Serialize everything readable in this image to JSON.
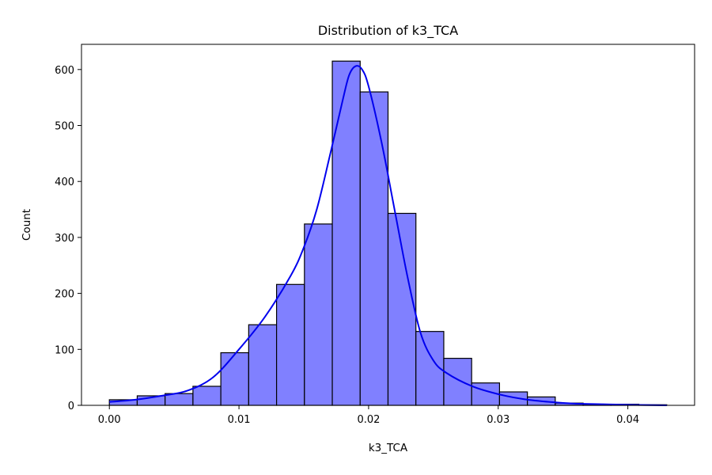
{
  "chart_data": {
    "type": "bar",
    "title": "Distribution of k3_TCA",
    "xlabel": "k3_TCA",
    "ylabel": "Count",
    "bin_edges": [
      0.0,
      0.00215,
      0.0043,
      0.00645,
      0.0086,
      0.01075,
      0.0129,
      0.01505,
      0.0172,
      0.01935,
      0.0215,
      0.02365,
      0.0258,
      0.02795,
      0.0301,
      0.03225,
      0.0344,
      0.03655,
      0.0387,
      0.04085,
      0.043
    ],
    "values": [
      10,
      17,
      21,
      34,
      94,
      144,
      216,
      324,
      615,
      560,
      343,
      132,
      84,
      40,
      24,
      15,
      4,
      2,
      2,
      1
    ],
    "kde": {
      "x": [
        0.0,
        0.002,
        0.004,
        0.006,
        0.008,
        0.01,
        0.012,
        0.014,
        0.015,
        0.016,
        0.017,
        0.018,
        0.0185,
        0.019,
        0.0195,
        0.02,
        0.021,
        0.022,
        0.023,
        0.024,
        0.025,
        0.026,
        0.028,
        0.03,
        0.032,
        0.034,
        0.036,
        0.038,
        0.04,
        0.043
      ],
      "y": [
        6,
        10,
        17,
        26,
        50,
        100,
        158,
        232,
        282,
        350,
        445,
        545,
        590,
        606,
        600,
        570,
        470,
        350,
        230,
        130,
        80,
        58,
        34,
        20,
        11,
        6,
        3,
        2,
        1,
        0
      ]
    },
    "xlim": [
      -0.00215,
      0.04515
    ],
    "ylim": [
      0,
      645
    ],
    "xticks": [
      "0.00",
      "0.01",
      "0.02",
      "0.03",
      "0.04"
    ],
    "xtick_values": [
      0.0,
      0.01,
      0.02,
      0.03,
      0.04
    ],
    "yticks": [
      "0",
      "100",
      "200",
      "300",
      "400",
      "500",
      "600"
    ],
    "ytick_values": [
      0,
      100,
      200,
      300,
      400,
      500,
      600
    ],
    "grid": false,
    "legend": "none",
    "bar_color": "#8080ff",
    "bar_edge_color": "#000000",
    "kde_color": "#0000ee"
  }
}
